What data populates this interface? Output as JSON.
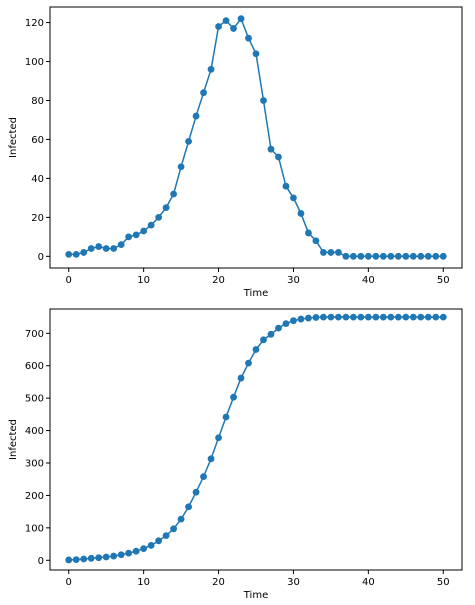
{
  "chart_data": [
    {
      "type": "line",
      "markers": true,
      "color": "#1f77b4",
      "xlabel": "Time",
      "ylabel": "Infected",
      "xlim": [
        -2.5,
        52.5
      ],
      "ylim": [
        -6,
        128
      ],
      "xticks": [
        0,
        10,
        20,
        30,
        40,
        50
      ],
      "yticks": [
        0,
        20,
        40,
        60,
        80,
        100,
        120
      ],
      "grid": false,
      "x": [
        0,
        1,
        2,
        3,
        4,
        5,
        6,
        7,
        8,
        9,
        10,
        11,
        12,
        13,
        14,
        15,
        16,
        17,
        18,
        19,
        20,
        21,
        22,
        23,
        24,
        25,
        26,
        27,
        28,
        29,
        30,
        31,
        32,
        33,
        34,
        35,
        36,
        37,
        38,
        39,
        40,
        41,
        42,
        43,
        44,
        45,
        46,
        47,
        48,
        49,
        50
      ],
      "y": [
        1,
        1,
        2,
        4,
        5,
        4,
        4,
        6,
        10,
        11,
        13,
        16,
        20,
        25,
        32,
        46,
        59,
        72,
        84,
        96,
        118,
        121,
        117,
        122,
        112,
        104,
        80,
        55,
        51,
        36,
        30,
        22,
        12,
        8,
        2,
        2,
        2,
        0,
        0,
        0,
        0,
        0,
        0,
        0,
        0,
        0,
        0,
        0,
        0,
        0,
        0
      ]
    },
    {
      "type": "line",
      "markers": true,
      "color": "#1f77b4",
      "xlabel": "Time",
      "ylabel": "Infected",
      "xlim": [
        -2.5,
        52.5
      ],
      "ylim": [
        -30,
        775
      ],
      "xticks": [
        0,
        10,
        20,
        30,
        40,
        50
      ],
      "yticks": [
        0,
        100,
        200,
        300,
        400,
        500,
        600,
        700
      ],
      "grid": false,
      "x": [
        0,
        1,
        2,
        3,
        4,
        5,
        6,
        7,
        8,
        9,
        10,
        11,
        12,
        13,
        14,
        15,
        16,
        17,
        18,
        19,
        20,
        21,
        22,
        23,
        24,
        25,
        26,
        27,
        28,
        29,
        30,
        31,
        32,
        33,
        34,
        35,
        36,
        37,
        38,
        39,
        40,
        41,
        42,
        43,
        44,
        45,
        46,
        47,
        48,
        49,
        50
      ],
      "y": [
        1,
        2,
        4,
        6,
        8,
        10,
        13,
        17,
        22,
        28,
        36,
        46,
        60,
        76,
        97,
        127,
        165,
        210,
        258,
        313,
        378,
        442,
        503,
        562,
        608,
        650,
        680,
        697,
        716,
        730,
        739,
        744,
        747,
        749,
        750,
        750,
        750,
        750,
        750,
        750,
        750,
        750,
        750,
        750,
        750,
        750,
        750,
        750,
        750,
        750,
        750
      ]
    }
  ]
}
